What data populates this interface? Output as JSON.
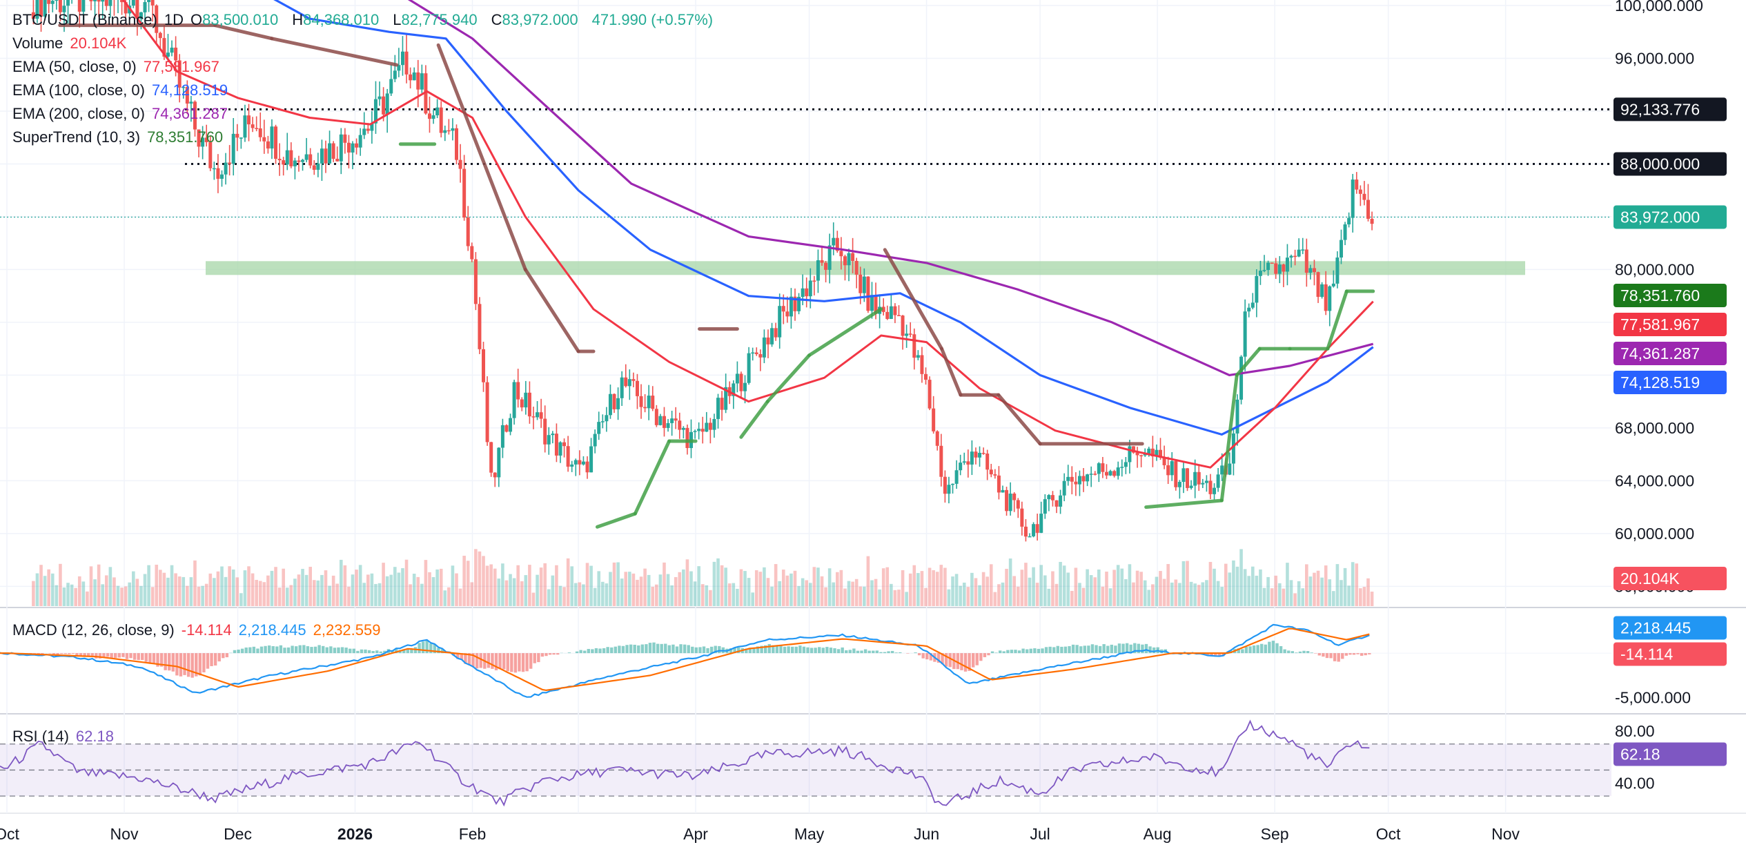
{
  "header": {
    "symbol": "BTC/USDT (Binance)",
    "interval": "1D",
    "open_label": "O",
    "open": "83,500.010",
    "high_label": "H",
    "high": "84,368.010",
    "low_label": "L",
    "low": "82,775.940",
    "close_label": "C",
    "close": "83,972.000",
    "change": "471.990 (+0.57%)"
  },
  "indicators": {
    "volume": {
      "label": "Volume",
      "value": "20.104K"
    },
    "ema50": {
      "label": "EMA (50, close, 0)",
      "value": "77,581.967"
    },
    "ema100": {
      "label": "EMA (100, close, 0)",
      "value": "74,128.519"
    },
    "ema200": {
      "label": "EMA (200, close, 0)",
      "value": "74,361.287"
    },
    "supertrend": {
      "label": "SuperTrend (10, 3)",
      "value": "78,351.760"
    },
    "macd": {
      "label": "MACD (12, 26, close, 9)",
      "hist": "-14.114",
      "macd": "2,218.445",
      "signal": "2,232.559"
    },
    "rsi": {
      "label": "RSI (14)",
      "value": "62.18"
    }
  },
  "colors": {
    "up": "#26a69a",
    "down": "#ef5350",
    "ema50": "#f23645",
    "ema100": "#2962ff",
    "ema200": "#9c27b0",
    "supertrend_up": "#43a047",
    "supertrend_down": "#8d4b48",
    "macd": "#2196f3",
    "signal": "#ff6d00",
    "rsi": "#7e57c2",
    "zone": "#a5d6a7"
  },
  "chart_data": {
    "type": "candlestick",
    "x_labels": [
      "Oct",
      "Nov",
      "Dec",
      "2026",
      "Feb",
      "Apr",
      "May",
      "Jun",
      "Jul",
      "Aug",
      "Sep",
      "Oct",
      "Nov"
    ],
    "y_ticks": [
      "100,000.000",
      "96,000.000",
      "80,000.000",
      "68,000.000",
      "64,000.000",
      "60,000.000",
      "56,000.000"
    ],
    "y_range": [
      54500,
      100000
    ],
    "horizontal_levels": [
      {
        "value": 92133.776,
        "label": "92,133.776",
        "style": "dotted"
      },
      {
        "value": 88000.0,
        "label": "88,000.000",
        "style": "dotted"
      },
      {
        "value": 83972.0,
        "label": "83,972.000",
        "style": "last-price"
      }
    ],
    "support_zone": [
      80000,
      81000
    ],
    "price_anchors": [
      [
        "2025-11-07",
        100500
      ],
      [
        "2025-11-20",
        90500
      ],
      [
        "2025-11-25",
        87500
      ],
      [
        "2025-12-05",
        91500
      ],
      [
        "2025-12-15",
        88500
      ],
      [
        "2025-12-25",
        89000
      ],
      [
        "2026-01-05",
        91000
      ],
      [
        "2026-01-15",
        96000
      ],
      [
        "2026-01-22",
        91500
      ],
      [
        "2026-01-28",
        89000
      ],
      [
        "2026-02-01",
        80500
      ],
      [
        "2026-02-06",
        63500
      ],
      [
        "2026-02-12",
        71000
      ],
      [
        "2026-02-22",
        67000
      ],
      [
        "2026-03-02",
        64500
      ],
      [
        "2026-03-12",
        71500
      ],
      [
        "2026-03-22",
        69000
      ],
      [
        "2026-04-01",
        67000
      ],
      [
        "2026-04-10",
        70500
      ],
      [
        "2026-04-20",
        75000
      ],
      [
        "2026-05-01",
        79000
      ],
      [
        "2026-05-09",
        81800
      ],
      [
        "2026-05-18",
        77000
      ],
      [
        "2026-05-25",
        76500
      ],
      [
        "2026-06-01",
        71000
      ],
      [
        "2026-06-06",
        63000
      ],
      [
        "2026-06-13",
        66500
      ],
      [
        "2026-06-20",
        63500
      ],
      [
        "2026-06-28",
        60000
      ],
      [
        "2026-07-08",
        64000
      ],
      [
        "2026-07-20",
        65000
      ],
      [
        "2026-07-28",
        66500
      ],
      [
        "2026-08-05",
        64500
      ],
      [
        "2026-08-15",
        63500
      ],
      [
        "2026-08-20",
        64800
      ],
      [
        "2026-08-25",
        78000
      ],
      [
        "2026-09-01",
        80000
      ],
      [
        "2026-09-08",
        80800
      ],
      [
        "2026-09-15",
        77000
      ],
      [
        "2026-09-18",
        80500
      ],
      [
        "2026-09-22",
        86500
      ],
      [
        "2026-09-27",
        83972
      ]
    ],
    "ema50": [
      [
        "2025-10-25",
        103000
      ],
      [
        "2025-11-15",
        95000
      ],
      [
        "2025-12-01",
        93000
      ],
      [
        "2025-12-20",
        91500
      ],
      [
        "2026-01-05",
        91000
      ],
      [
        "2026-01-20",
        93500
      ],
      [
        "2026-02-01",
        91500
      ],
      [
        "2026-02-15",
        84000
      ],
      [
        "2026-03-05",
        77000
      ],
      [
        "2026-03-25",
        73000
      ],
      [
        "2026-04-15",
        70000
      ],
      [
        "2026-05-05",
        71800
      ],
      [
        "2026-05-20",
        75000
      ],
      [
        "2026-06-01",
        74500
      ],
      [
        "2026-06-15",
        71000
      ],
      [
        "2026-07-05",
        67800
      ],
      [
        "2026-07-25",
        66300
      ],
      [
        "2026-08-15",
        65000
      ],
      [
        "2026-09-01",
        69500
      ],
      [
        "2026-09-15",
        74000
      ],
      [
        "2026-09-27",
        77582
      ]
    ],
    "ema100": [
      [
        "2025-12-01",
        102000
      ],
      [
        "2025-12-20",
        99000
      ],
      [
        "2026-01-10",
        98000
      ],
      [
        "2026-01-25",
        97500
      ],
      [
        "2026-02-10",
        92000
      ],
      [
        "2026-03-01",
        86000
      ],
      [
        "2026-03-20",
        81500
      ],
      [
        "2026-04-15",
        78000
      ],
      [
        "2026-05-05",
        77600
      ],
      [
        "2026-05-25",
        78200
      ],
      [
        "2026-06-10",
        76000
      ],
      [
        "2026-07-01",
        72000
      ],
      [
        "2026-07-25",
        69500
      ],
      [
        "2026-08-18",
        67500
      ],
      [
        "2026-09-01",
        69500
      ],
      [
        "2026-09-15",
        71500
      ],
      [
        "2026-09-27",
        74129
      ]
    ],
    "ema200": [
      [
        "2025-12-15",
        103500
      ],
      [
        "2026-01-15",
        100500
      ],
      [
        "2026-02-01",
        97500
      ],
      [
        "2026-02-20",
        92500
      ],
      [
        "2026-03-15",
        86500
      ],
      [
        "2026-04-15",
        82500
      ],
      [
        "2026-05-10",
        81500
      ],
      [
        "2026-06-01",
        80500
      ],
      [
        "2026-06-25",
        78500
      ],
      [
        "2026-07-20",
        76000
      ],
      [
        "2026-08-20",
        72000
      ],
      [
        "2026-09-05",
        72700
      ],
      [
        "2026-09-27",
        74361
      ]
    ],
    "supertrend": [
      [
        "2025-10-15",
        98500,
        "down"
      ],
      [
        "2025-11-25",
        98500,
        "down"
      ],
      [
        "2025-12-10",
        97500,
        "down"
      ],
      [
        "2026-01-12",
        95500,
        "down"
      ],
      [
        "2026-01-13",
        89500,
        "up"
      ],
      [
        "2026-01-22",
        89500,
        "up"
      ],
      [
        "2026-01-23",
        97000,
        "down"
      ],
      [
        "2026-02-15",
        80000,
        "down"
      ],
      [
        "2026-03-01",
        73800,
        "down"
      ],
      [
        "2026-03-05",
        73800,
        "down"
      ],
      [
        "2026-03-06",
        60500,
        "up"
      ],
      [
        "2026-03-16",
        61500,
        "up"
      ],
      [
        "2026-03-25",
        67000,
        "up"
      ],
      [
        "2026-04-01",
        67000,
        "up"
      ],
      [
        "2026-04-02",
        75500,
        "down"
      ],
      [
        "2026-04-12",
        75500,
        "down"
      ],
      [
        "2026-04-13",
        67300,
        "up"
      ],
      [
        "2026-04-20",
        70000,
        "up"
      ],
      [
        "2026-05-01",
        73500,
        "up"
      ],
      [
        "2026-05-20",
        77000,
        "up"
      ],
      [
        "2026-05-21",
        81500,
        "down"
      ],
      [
        "2026-06-05",
        74000,
        "down"
      ],
      [
        "2026-06-10",
        70500,
        "down"
      ],
      [
        "2026-06-20",
        70500,
        "down"
      ],
      [
        "2026-07-01",
        66800,
        "down"
      ],
      [
        "2026-07-28",
        66800,
        "down"
      ],
      [
        "2026-07-29",
        62000,
        "up"
      ],
      [
        "2026-08-18",
        62500,
        "up"
      ],
      [
        "2026-08-22",
        72000,
        "up"
      ],
      [
        "2026-08-28",
        74000,
        "up"
      ],
      [
        "2026-09-05",
        74000,
        "up"
      ],
      [
        "2026-09-15",
        74000,
        "up"
      ],
      [
        "2026-09-20",
        78352,
        "up"
      ],
      [
        "2026-09-27",
        78352,
        "up"
      ]
    ],
    "volume_scale_max": 35000,
    "volume_last": 20104,
    "macd": {
      "y_ticks": [
        "-5,000.000"
      ],
      "macd_anchors": [
        [
          "2025-10-01",
          0
        ],
        [
          "2025-10-20",
          -500
        ],
        [
          "2025-11-05",
          -1500
        ],
        [
          "2025-11-20",
          -4500
        ],
        [
          "2025-12-10",
          -2500
        ],
        [
          "2026-01-05",
          -500
        ],
        [
          "2026-01-20",
          1500
        ],
        [
          "2026-02-05",
          -2500
        ],
        [
          "2026-02-15",
          -5000
        ],
        [
          "2026-03-10",
          -2500
        ],
        [
          "2026-04-01",
          -500
        ],
        [
          "2026-04-20",
          1500
        ],
        [
          "2026-05-10",
          2000
        ],
        [
          "2026-05-30",
          800
        ],
        [
          "2026-06-12",
          -3500
        ],
        [
          "2026-07-01",
          -1800
        ],
        [
          "2026-07-28",
          300
        ],
        [
          "2026-08-18",
          -300
        ],
        [
          "2026-09-01",
          3200
        ],
        [
          "2026-09-10",
          2500
        ],
        [
          "2026-09-18",
          900
        ],
        [
          "2026-09-27",
          2218
        ]
      ],
      "signal_anchors": [
        [
          "2025-10-01",
          0
        ],
        [
          "2025-10-25",
          -400
        ],
        [
          "2025-11-15",
          -1500
        ],
        [
          "2025-12-01",
          -3800
        ],
        [
          "2025-12-25",
          -2000
        ],
        [
          "2026-01-15",
          500
        ],
        [
          "2026-02-01",
          -200
        ],
        [
          "2026-02-20",
          -4200
        ],
        [
          "2026-03-20",
          -2500
        ],
        [
          "2026-04-15",
          500
        ],
        [
          "2026-05-10",
          1600
        ],
        [
          "2026-06-01",
          800
        ],
        [
          "2026-06-18",
          -3000
        ],
        [
          "2026-07-10",
          -1800
        ],
        [
          "2026-08-05",
          0
        ],
        [
          "2026-08-20",
          0
        ],
        [
          "2026-09-05",
          2800
        ],
        [
          "2026-09-20",
          1500
        ],
        [
          "2026-09-27",
          2233
        ]
      ],
      "y_range": [
        -6500,
        4500
      ],
      "hist_last": -14.114,
      "macd_last": 2218.445,
      "signal_last": 2232.559,
      "axis_label_partial": "2,232.559"
    },
    "rsi": {
      "y_ticks": [
        "80.00",
        "40.00"
      ],
      "bands": [
        70,
        50,
        30
      ],
      "y_range": [
        20,
        90
      ],
      "anchors": [
        [
          "2025-10-01",
          52
        ],
        [
          "2025-10-10",
          70
        ],
        [
          "2025-10-20",
          48
        ],
        [
          "2025-11-05",
          44
        ],
        [
          "2025-11-25",
          28
        ],
        [
          "2025-12-15",
          45
        ],
        [
          "2026-01-05",
          55
        ],
        [
          "2026-01-18",
          72
        ],
        [
          "2026-01-28",
          45
        ],
        [
          "2026-02-08",
          25
        ],
        [
          "2026-02-20",
          42
        ],
        [
          "2026-03-10",
          50
        ],
        [
          "2026-04-01",
          45
        ],
        [
          "2026-04-20",
          62
        ],
        [
          "2026-05-10",
          65
        ],
        [
          "2026-05-30",
          45
        ],
        [
          "2026-06-05",
          22
        ],
        [
          "2026-06-20",
          42
        ],
        [
          "2026-07-01",
          32
        ],
        [
          "2026-07-10",
          50
        ],
        [
          "2026-07-30",
          60
        ],
        [
          "2026-08-18",
          47
        ],
        [
          "2026-08-25",
          86
        ],
        [
          "2026-09-05",
          72
        ],
        [
          "2026-09-15",
          52
        ],
        [
          "2026-09-22",
          73
        ],
        [
          "2026-09-27",
          62.18
        ]
      ]
    }
  },
  "price_axis_badges": [
    {
      "label": "92,133.776",
      "value": 92133.776,
      "kind": "black"
    },
    {
      "label": "88,000.000",
      "value": 88000,
      "kind": "black"
    },
    {
      "label": "83,972.000",
      "value": 83972,
      "kind": "up"
    },
    {
      "label": "78,351.760",
      "value": 78351.76,
      "kind": "supertrend"
    },
    {
      "label": "77,581.967",
      "value": 77581.967,
      "kind": "ema50"
    },
    {
      "label": "74,361.287",
      "value": 74361.287,
      "kind": "ema200"
    },
    {
      "label": "74,128.519",
      "value": 74128.519,
      "kind": "ema100"
    },
    {
      "label": "20.104K",
      "kind": "volume"
    }
  ]
}
